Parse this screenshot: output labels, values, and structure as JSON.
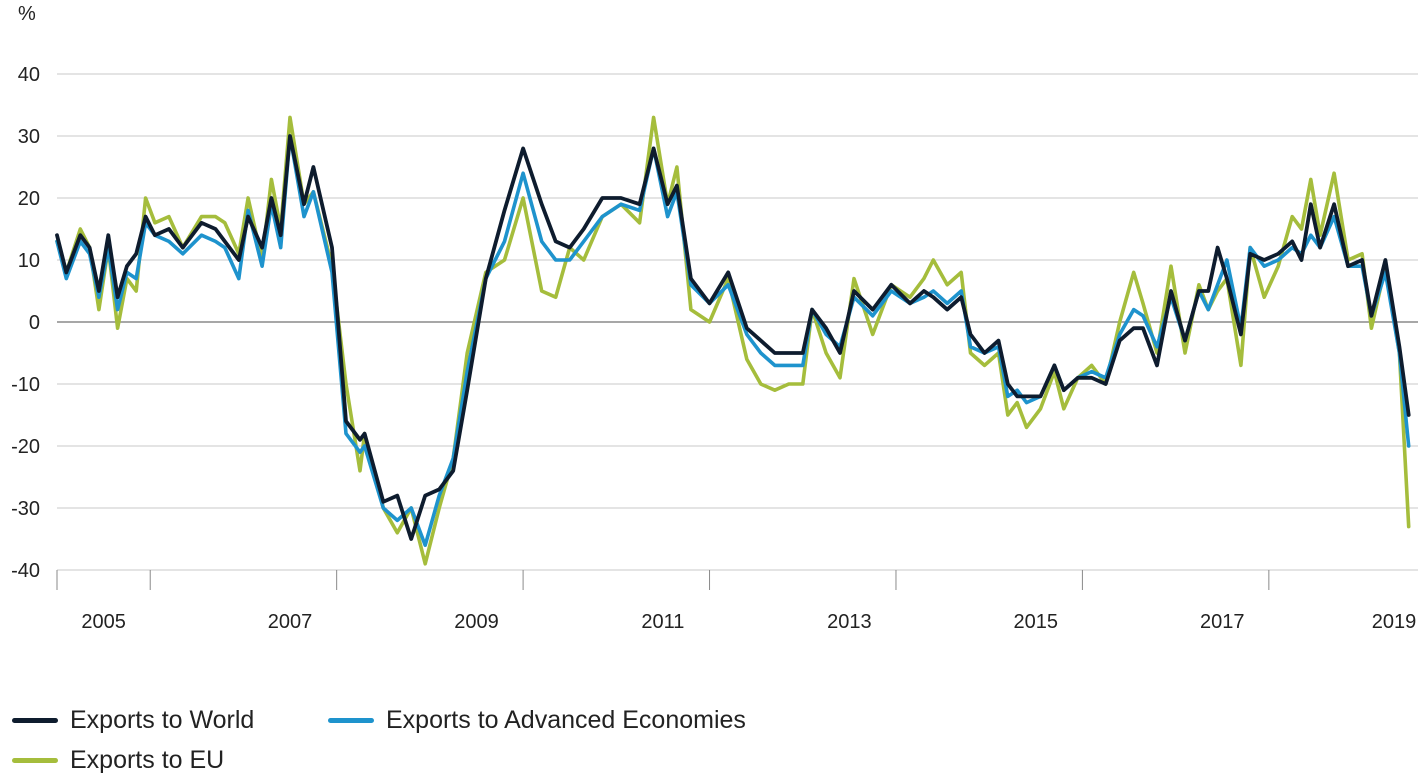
{
  "chart_data": {
    "type": "line",
    "ylabel": "%",
    "ylim": [
      -40,
      40
    ],
    "yticks": [
      "40",
      "30",
      "20",
      "10",
      "0",
      "-10",
      "-20",
      "-30",
      "-40"
    ],
    "xlim": [
      2004.5,
      2019.1
    ],
    "xticks": [
      "2005",
      "2007",
      "2009",
      "2011",
      "2013",
      "2015",
      "2017",
      "2019"
    ],
    "grid": "horizontal",
    "legend_position": "bottom-left",
    "series": [
      {
        "name": "Exports to EU",
        "color": "#a5bd3c",
        "x": [
          2004.5,
          2004.6,
          2004.75,
          2004.85,
          2004.95,
          2005.05,
          2005.15,
          2005.25,
          2005.35,
          2005.45,
          2005.55,
          2005.7,
          2005.85,
          2006.05,
          2006.2,
          2006.3,
          2006.45,
          2006.55,
          2006.7,
          2006.8,
          2006.9,
          2007.0,
          2007.15,
          2007.25,
          2007.45,
          2007.6,
          2007.75,
          2007.8,
          2008.0,
          2008.15,
          2008.3,
          2008.45,
          2008.6,
          2008.75,
          2008.9,
          2009.1,
          2009.3,
          2009.5,
          2009.7,
          2009.85,
          2010.0,
          2010.15,
          2010.35,
          2010.55,
          2010.75,
          2010.9,
          2011.05,
          2011.15,
          2011.3,
          2011.5,
          2011.7,
          2011.9,
          2012.05,
          2012.2,
          2012.35,
          2012.5,
          2012.6,
          2012.75,
          2012.9,
          2013.05,
          2013.25,
          2013.45,
          2013.65,
          2013.8,
          2013.9,
          2014.05,
          2014.2,
          2014.3,
          2014.45,
          2014.6,
          2014.7,
          2014.8,
          2014.9,
          2015.05,
          2015.2,
          2015.3,
          2015.45,
          2015.6,
          2015.75,
          2015.9,
          2016.05,
          2016.15,
          2016.3,
          2016.45,
          2016.6,
          2016.75,
          2016.85,
          2016.95,
          2017.05,
          2017.2,
          2017.3,
          2017.45,
          2017.6,
          2017.75,
          2017.85,
          2017.95,
          2018.05,
          2018.2,
          2018.35,
          2018.5,
          2018.6,
          2018.75,
          2018.9,
          2019.0
        ],
        "y": [
          13,
          8,
          15,
          12,
          2,
          12,
          -1,
          7,
          5,
          20,
          16,
          17,
          12,
          17,
          17,
          16,
          11,
          20,
          10,
          23,
          15,
          33,
          19,
          21,
          9,
          -10,
          -24,
          -18,
          -30,
          -34,
          -30,
          -39,
          -30,
          -22,
          -5,
          8,
          10,
          20,
          5,
          4,
          12,
          10,
          17,
          19,
          16,
          33,
          19,
          25,
          2,
          0,
          7,
          -6,
          -10,
          -11,
          -10,
          -10,
          2,
          -5,
          -9,
          7,
          -2,
          6,
          4,
          7,
          10,
          6,
          8,
          -5,
          -7,
          -5,
          -15,
          -13,
          -17,
          -14,
          -8,
          -14,
          -9,
          -7,
          -10,
          0,
          8,
          3,
          -5,
          9,
          -5,
          6,
          2,
          5,
          7,
          -7,
          12,
          4,
          9,
          17,
          15,
          23,
          14,
          24,
          10,
          11,
          -1,
          9,
          -5,
          -33
        ]
      },
      {
        "name": "Exports to Advanced Economies",
        "color": "#1e93cd",
        "x": [
          2004.5,
          2004.6,
          2004.75,
          2004.85,
          2004.95,
          2005.05,
          2005.15,
          2005.25,
          2005.35,
          2005.45,
          2005.55,
          2005.7,
          2005.85,
          2006.05,
          2006.2,
          2006.3,
          2006.45,
          2006.55,
          2006.7,
          2006.8,
          2006.9,
          2007.0,
          2007.15,
          2007.25,
          2007.45,
          2007.6,
          2007.75,
          2007.8,
          2008.0,
          2008.15,
          2008.3,
          2008.45,
          2008.6,
          2008.75,
          2008.9,
          2009.1,
          2009.3,
          2009.5,
          2009.7,
          2009.85,
          2010.0,
          2010.15,
          2010.35,
          2010.55,
          2010.75,
          2010.9,
          2011.05,
          2011.15,
          2011.3,
          2011.5,
          2011.7,
          2011.9,
          2012.05,
          2012.2,
          2012.35,
          2012.5,
          2012.6,
          2012.75,
          2012.9,
          2013.05,
          2013.25,
          2013.45,
          2013.65,
          2013.8,
          2013.9,
          2014.05,
          2014.2,
          2014.3,
          2014.45,
          2014.6,
          2014.7,
          2014.8,
          2014.9,
          2015.05,
          2015.2,
          2015.3,
          2015.45,
          2015.6,
          2015.75,
          2015.9,
          2016.05,
          2016.15,
          2016.3,
          2016.45,
          2016.6,
          2016.75,
          2016.85,
          2016.95,
          2017.05,
          2017.2,
          2017.3,
          2017.45,
          2017.6,
          2017.75,
          2017.85,
          2017.95,
          2018.05,
          2018.2,
          2018.35,
          2018.5,
          2018.6,
          2018.75,
          2018.9,
          2019.0
        ],
        "y": [
          13,
          7,
          13,
          11,
          4,
          12,
          2,
          8,
          7,
          16,
          14,
          13,
          11,
          14,
          13,
          12,
          7,
          18,
          9,
          19,
          12,
          30,
          17,
          21,
          8,
          -18,
          -21,
          -20,
          -30,
          -32,
          -30,
          -36,
          -28,
          -22,
          -8,
          7,
          13,
          24,
          13,
          10,
          10,
          13,
          17,
          19,
          18,
          28,
          17,
          21,
          6,
          3,
          6,
          -2,
          -5,
          -7,
          -7,
          -7,
          2,
          -2,
          -4,
          4,
          1,
          5,
          3,
          4,
          5,
          3,
          5,
          -4,
          -5,
          -4,
          -12,
          -11,
          -13,
          -12,
          -7,
          -11,
          -9,
          -8,
          -9,
          -2,
          2,
          1,
          -4,
          4,
          -3,
          5,
          2,
          6,
          10,
          -1,
          12,
          9,
          10,
          12,
          11,
          14,
          12,
          17,
          9,
          9,
          1,
          8,
          -5,
          -20
        ]
      },
      {
        "name": "Exports to World",
        "color": "#0e1c2e",
        "x": [
          2004.5,
          2004.6,
          2004.75,
          2004.85,
          2004.95,
          2005.05,
          2005.15,
          2005.25,
          2005.35,
          2005.45,
          2005.55,
          2005.7,
          2005.85,
          2006.05,
          2006.2,
          2006.3,
          2006.45,
          2006.55,
          2006.7,
          2006.8,
          2006.9,
          2007.0,
          2007.15,
          2007.25,
          2007.45,
          2007.6,
          2007.75,
          2007.8,
          2008.0,
          2008.15,
          2008.3,
          2008.45,
          2008.6,
          2008.75,
          2008.9,
          2009.1,
          2009.3,
          2009.5,
          2009.7,
          2009.85,
          2010.0,
          2010.15,
          2010.35,
          2010.55,
          2010.75,
          2010.9,
          2011.05,
          2011.15,
          2011.3,
          2011.5,
          2011.7,
          2011.9,
          2012.05,
          2012.2,
          2012.35,
          2012.5,
          2012.6,
          2012.75,
          2012.9,
          2013.05,
          2013.25,
          2013.45,
          2013.65,
          2013.8,
          2013.9,
          2014.05,
          2014.2,
          2014.3,
          2014.45,
          2014.6,
          2014.7,
          2014.8,
          2014.9,
          2015.05,
          2015.2,
          2015.3,
          2015.45,
          2015.6,
          2015.75,
          2015.9,
          2016.05,
          2016.15,
          2016.3,
          2016.45,
          2016.6,
          2016.75,
          2016.85,
          2016.95,
          2017.05,
          2017.2,
          2017.3,
          2017.45,
          2017.6,
          2017.75,
          2017.85,
          2017.95,
          2018.05,
          2018.2,
          2018.35,
          2018.5,
          2018.6,
          2018.75,
          2018.9,
          2019.0
        ],
        "y": [
          14,
          8,
          14,
          12,
          5,
          14,
          4,
          9,
          11,
          17,
          14,
          15,
          12,
          16,
          15,
          13,
          10,
          17,
          12,
          20,
          14,
          30,
          19,
          25,
          12,
          -16,
          -19,
          -18,
          -29,
          -28,
          -35,
          -28,
          -27,
          -24,
          -11,
          7,
          18,
          28,
          19,
          13,
          12,
          15,
          20,
          20,
          19,
          28,
          19,
          22,
          7,
          3,
          8,
          -1,
          -3,
          -5,
          -5,
          -5,
          2,
          -1,
          -5,
          5,
          2,
          6,
          3,
          5,
          4,
          2,
          4,
          -2,
          -5,
          -3,
          -10,
          -12,
          -12,
          -12,
          -7,
          -11,
          -9,
          -9,
          -10,
          -3,
          -1,
          -1,
          -7,
          5,
          -3,
          5,
          5,
          12,
          7,
          -2,
          11,
          10,
          11,
          13,
          10,
          19,
          12,
          19,
          9,
          10,
          1,
          10,
          -4,
          -15
        ]
      }
    ],
    "legend": [
      "Exports to World",
      "Exports to Advanced Economies",
      "Exports to EU"
    ]
  }
}
